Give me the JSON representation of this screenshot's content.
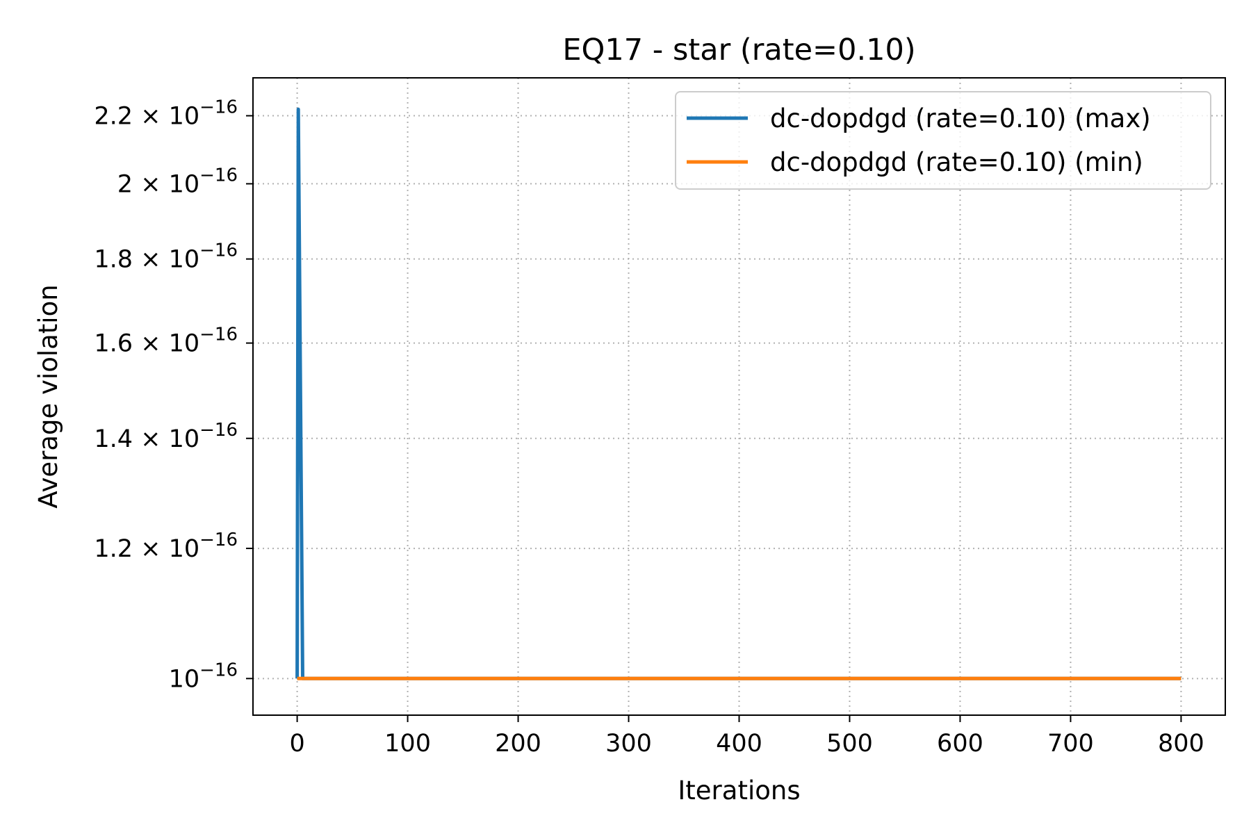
{
  "chart_data": {
    "type": "line",
    "title": "EQ17 - star (rate=0.10)",
    "xlabel": "Iterations",
    "ylabel": "Average violation",
    "yscale": "log",
    "xlim": [
      -40,
      840
    ],
    "ylim": [
      9.5e-17,
      2.32e-16
    ],
    "x_ticks": [
      0,
      100,
      200,
      300,
      400,
      500,
      600,
      700,
      800
    ],
    "x_tick_labels": [
      "0",
      "100",
      "200",
      "300",
      "400",
      "500",
      "600",
      "700",
      "800"
    ],
    "y_ticks": [
      {
        "value": 1e-16,
        "mantissa": "",
        "exponent": "−16"
      },
      {
        "value": 1.2e-16,
        "mantissa": "1.2",
        "exponent": "−16"
      },
      {
        "value": 1.4e-16,
        "mantissa": "1.4",
        "exponent": "−16"
      },
      {
        "value": 1.6e-16,
        "mantissa": "1.6",
        "exponent": "−16"
      },
      {
        "value": 1.8e-16,
        "mantissa": "1.8",
        "exponent": "−16"
      },
      {
        "value": 2e-16,
        "mantissa": "2",
        "exponent": "−16"
      },
      {
        "value": 2.2e-16,
        "mantissa": "2.2",
        "exponent": "−16"
      }
    ],
    "grid": true,
    "legend_position": "top-right",
    "series": [
      {
        "name": "dc-dopdgd (rate=0.10) (max)",
        "color": "#1f77b4",
        "x": [
          0,
          1,
          5,
          800
        ],
        "y": [
          1e-16,
          2.22e-16,
          1e-16,
          1e-16
        ]
      },
      {
        "name": "dc-dopdgd (rate=0.10) (min)",
        "color": "#ff7f0e",
        "x": [
          0,
          800
        ],
        "y": [
          1e-16,
          1e-16
        ]
      }
    ]
  }
}
